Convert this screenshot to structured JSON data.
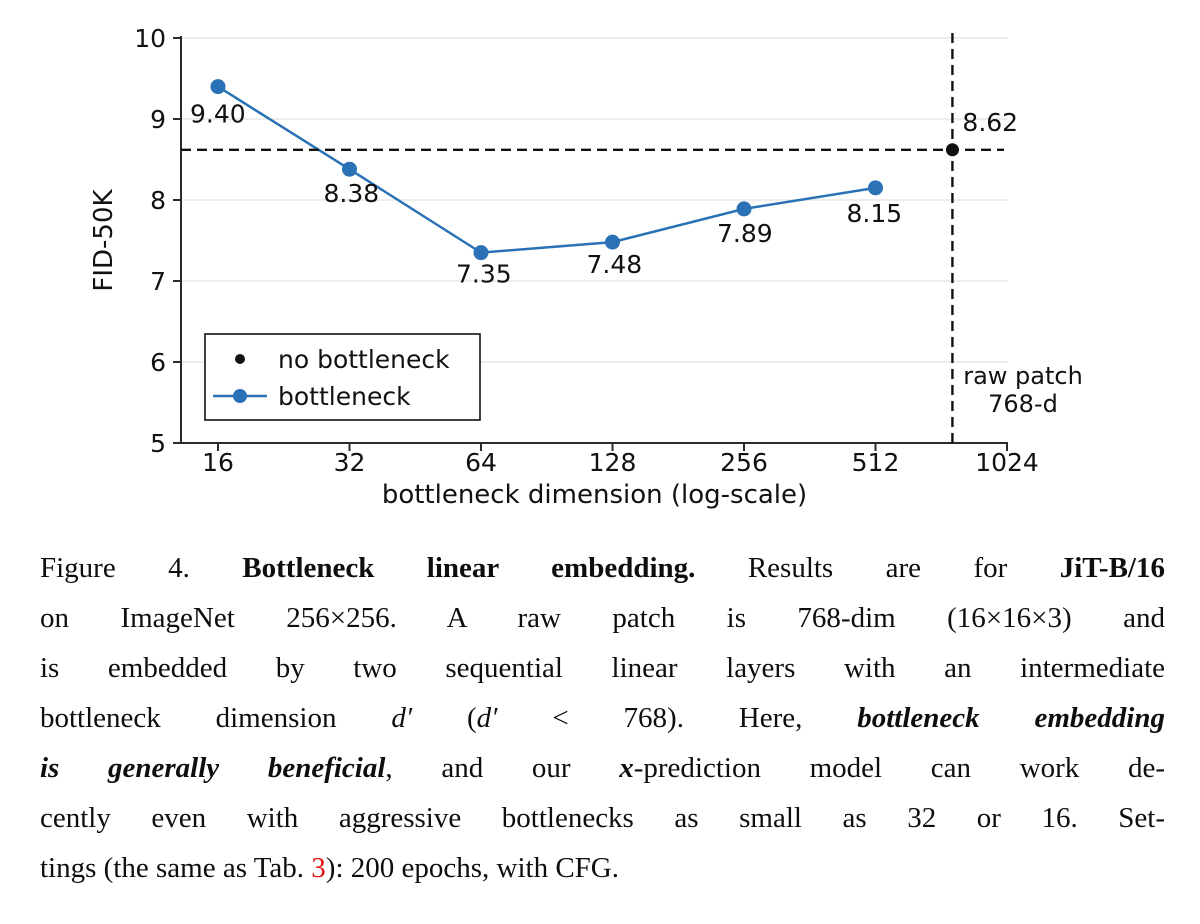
{
  "colors": {
    "background": "#ffffff",
    "accent_blue": "#2a72b5",
    "black": "#111111",
    "grid": "#e7e7e7",
    "axis": "#2b2b2b",
    "link_red": "#e01212"
  },
  "chart_data": {
    "type": "line",
    "title": "",
    "xlabel": "bottleneck dimension (log-scale)",
    "ylabel": "FID-50K",
    "x_scale": "log2",
    "x_ticks": [
      16,
      32,
      64,
      128,
      256,
      512,
      1024
    ],
    "y_ticks": [
      5,
      6,
      7,
      8,
      9,
      10
    ],
    "ylim": [
      5,
      10
    ],
    "grid": "horizontal",
    "legend": {
      "position": "lower left",
      "entries": [
        {
          "label": "no bottleneck",
          "marker": "dot",
          "color": "#111111"
        },
        {
          "label": "bottleneck",
          "marker": "line-dot",
          "color": "#2a72b5"
        }
      ]
    },
    "series": [
      {
        "name": "bottleneck",
        "color": "#2a72b5",
        "x": [
          16,
          32,
          64,
          128,
          256,
          512
        ],
        "y": [
          9.4,
          8.38,
          7.35,
          7.48,
          7.89,
          8.15
        ],
        "point_labels": [
          "9.40",
          "8.38",
          "7.35",
          "7.48",
          "7.89",
          "8.15"
        ],
        "label_offsets": [
          [
            -28,
            36
          ],
          [
            -26,
            33
          ],
          [
            -25,
            30
          ],
          [
            -26,
            31
          ],
          [
            -27,
            33
          ],
          [
            -29,
            34
          ]
        ]
      },
      {
        "name": "no bottleneck",
        "color": "#111111",
        "style": "point_with_dashed_crosshair",
        "x": [
          768
        ],
        "y": [
          8.62
        ],
        "point_labels": [
          "8.62"
        ],
        "label_offsets": [
          [
            10,
            -19
          ]
        ]
      }
    ],
    "annotations": [
      {
        "lines": [
          "raw patch",
          "768-d"
        ],
        "x": 768,
        "anchor_x": 1023,
        "baselines": [
          384,
          412
        ]
      }
    ]
  },
  "caption": {
    "lines": [
      [
        {
          "t": "Figure 4. ",
          "s": "n",
          "name": "figure-number"
        },
        {
          "t": "Bottleneck linear embedding.",
          "s": "b",
          "name": "figure-title"
        },
        {
          "t": " Results are for ",
          "s": "n"
        },
        {
          "t": "JiT-B/16",
          "s": "b"
        }
      ],
      [
        {
          "t": "on ImageNet 256×256. A raw patch is 768-dim (16×16×3) and",
          "s": "n"
        }
      ],
      [
        {
          "t": "is embedded by two sequential linear layers with an intermediate",
          "s": "n"
        }
      ],
      [
        {
          "t": "bottleneck dimension ",
          "s": "n"
        },
        {
          "t": "d′",
          "s": "i"
        },
        {
          "t": " (",
          "s": "n"
        },
        {
          "t": "d′",
          "s": "i"
        },
        {
          "t": " < 768). Here, ",
          "s": "n"
        },
        {
          "t": "bottleneck embedding",
          "s": "bi"
        }
      ],
      [
        {
          "t": "is generally beneficial",
          "s": "bi"
        },
        {
          "t": ", and our ",
          "s": "n"
        },
        {
          "t": "x",
          "s": "bi"
        },
        {
          "t": "-prediction model can work de-",
          "s": "n"
        }
      ],
      [
        {
          "t": "cently even with aggressive bottlenecks as small as 32 or 16. Set-",
          "s": "n"
        }
      ],
      [
        {
          "t": "tings (the same as Tab. ",
          "s": "n"
        },
        {
          "t": "3",
          "s": "r",
          "name": "table-3-reference-link"
        },
        {
          "t": "): 200 epochs, with CFG.",
          "s": "n"
        }
      ]
    ]
  }
}
